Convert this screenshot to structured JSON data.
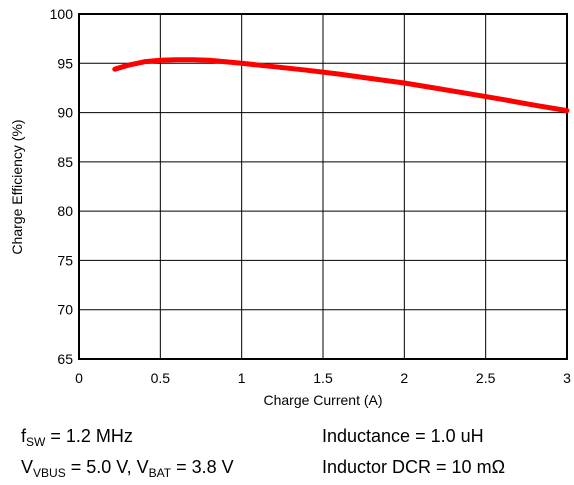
{
  "chart_data": {
    "type": "line",
    "title": "",
    "xlabel": "Charge Current (A)",
    "ylabel": "Charge Efficiency (%)",
    "xlim": [
      0,
      3
    ],
    "ylim": [
      65,
      100
    ],
    "x_ticks": [
      "0",
      "0.5",
      "1",
      "1.5",
      "2",
      "2.5",
      "3"
    ],
    "y_ticks": [
      "65",
      "70",
      "75",
      "80",
      "85",
      "90",
      "95",
      "100"
    ],
    "grid": true,
    "legend": "none",
    "series": [
      {
        "color": "#ff0000",
        "points": [
          [
            0.22,
            94.4
          ],
          [
            0.3,
            94.8
          ],
          [
            0.4,
            95.15
          ],
          [
            0.5,
            95.3
          ],
          [
            0.6,
            95.35
          ],
          [
            0.7,
            95.35
          ],
          [
            0.8,
            95.3
          ],
          [
            0.9,
            95.15
          ],
          [
            1.0,
            95.0
          ],
          [
            1.2,
            94.65
          ],
          [
            1.4,
            94.3
          ],
          [
            1.6,
            93.9
          ],
          [
            1.8,
            93.45
          ],
          [
            2.0,
            93.0
          ],
          [
            2.2,
            92.45
          ],
          [
            2.4,
            91.9
          ],
          [
            2.6,
            91.35
          ],
          [
            2.8,
            90.75
          ],
          [
            3.0,
            90.2
          ]
        ]
      }
    ]
  },
  "conditions": {
    "fsw_main": "f",
    "fsw_sub": "SW",
    "fsw_value": " = 1.2 MHz",
    "vvbus_main": "V",
    "vvbus_sub": "VBUS",
    "vvbus_value": " = 5.0 V, ",
    "vbat_main": "V",
    "vbat_sub": "BAT",
    "vbat_value": " = 3.8 V",
    "inductance": "Inductance = 1.0 uH",
    "dcr": "Inductor DCR = 10 mΩ"
  }
}
